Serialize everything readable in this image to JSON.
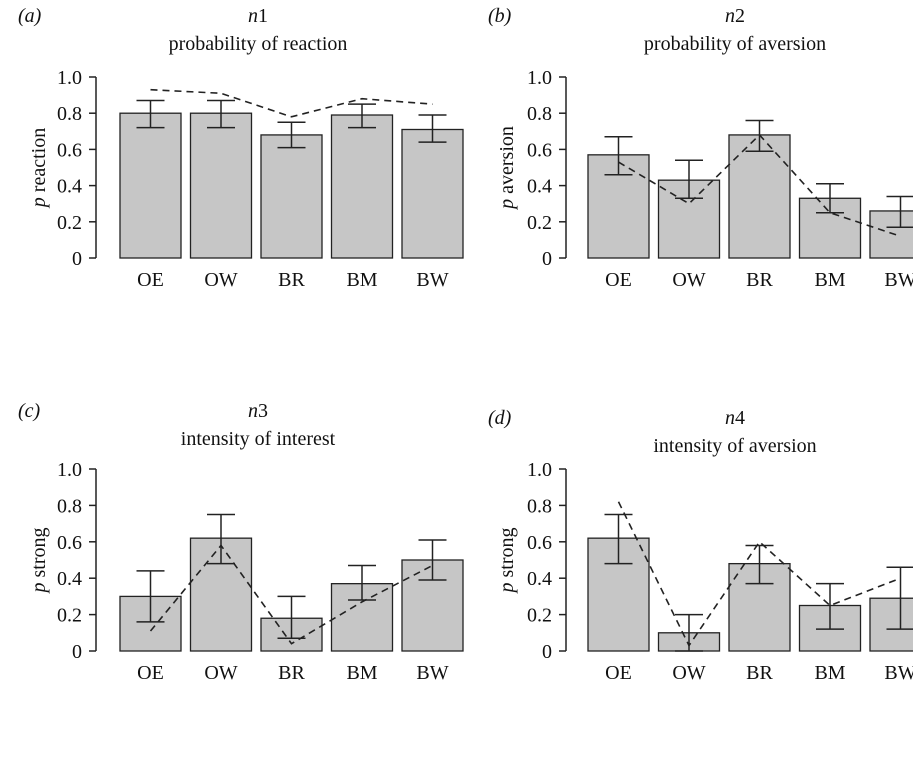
{
  "chart_data": [
    {
      "type": "bar",
      "panel": "(a)",
      "title": "n1",
      "subtitle": "probability of reaction",
      "ylabel": "p reaction",
      "ylim": [
        0,
        1
      ],
      "yticks": [
        "0",
        "0.2",
        "0.4",
        "0.6",
        "0.8",
        "1.0"
      ],
      "categories": [
        "OE",
        "OW",
        "BR",
        "BM",
        "BW"
      ],
      "values": [
        0.8,
        0.8,
        0.68,
        0.79,
        0.71
      ],
      "error_low": [
        0.72,
        0.72,
        0.61,
        0.72,
        0.64
      ],
      "error_high": [
        0.87,
        0.87,
        0.75,
        0.85,
        0.79
      ],
      "dashed": [
        0.93,
        0.91,
        0.78,
        0.88,
        0.85
      ]
    },
    {
      "type": "bar",
      "panel": "(b)",
      "title": "n2",
      "subtitle": "probability of aversion",
      "ylabel": "p aversion",
      "ylim": [
        0,
        1
      ],
      "yticks": [
        "0",
        "0.2",
        "0.4",
        "0.6",
        "0.8",
        "1.0"
      ],
      "categories": [
        "OE",
        "OW",
        "BR",
        "BM",
        "BW"
      ],
      "values": [
        0.57,
        0.43,
        0.68,
        0.33,
        0.26
      ],
      "error_low": [
        0.46,
        0.33,
        0.59,
        0.25,
        0.17
      ],
      "error_high": [
        0.67,
        0.54,
        0.76,
        0.41,
        0.34
      ],
      "dashed": [
        0.53,
        0.3,
        0.68,
        0.25,
        0.12
      ]
    },
    {
      "type": "bar",
      "panel": "(c)",
      "title": "n3",
      "subtitle": "intensity of interest",
      "ylabel": "p strong",
      "ylim": [
        0,
        1
      ],
      "yticks": [
        "0",
        "0.2",
        "0.4",
        "0.6",
        "0.8",
        "1.0"
      ],
      "categories": [
        "OE",
        "OW",
        "BR",
        "BM",
        "BW"
      ],
      "values": [
        0.3,
        0.62,
        0.18,
        0.37,
        0.5
      ],
      "error_low": [
        0.16,
        0.48,
        0.07,
        0.28,
        0.39
      ],
      "error_high": [
        0.44,
        0.75,
        0.3,
        0.47,
        0.61
      ],
      "dashed": [
        0.11,
        0.58,
        0.04,
        0.27,
        0.47
      ]
    },
    {
      "type": "bar",
      "panel": "(d)",
      "title": "n4",
      "subtitle": "intensity of aversion",
      "ylabel": "p strong",
      "ylim": [
        0,
        1
      ],
      "yticks": [
        "0",
        "0.2",
        "0.4",
        "0.6",
        "0.8",
        "1.0"
      ],
      "categories": [
        "OE",
        "OW",
        "BR",
        "BM",
        "BW"
      ],
      "values": [
        0.62,
        0.1,
        0.48,
        0.25,
        0.29
      ],
      "error_low": [
        0.48,
        0.0,
        0.37,
        0.12,
        0.12
      ],
      "error_high": [
        0.75,
        0.2,
        0.58,
        0.37,
        0.46
      ],
      "dashed": [
        0.82,
        0.03,
        0.6,
        0.25,
        0.4
      ]
    }
  ],
  "colors": {
    "bar_fill": "#c6c6c6",
    "bar_stroke": "#222222",
    "line": "#222222"
  }
}
